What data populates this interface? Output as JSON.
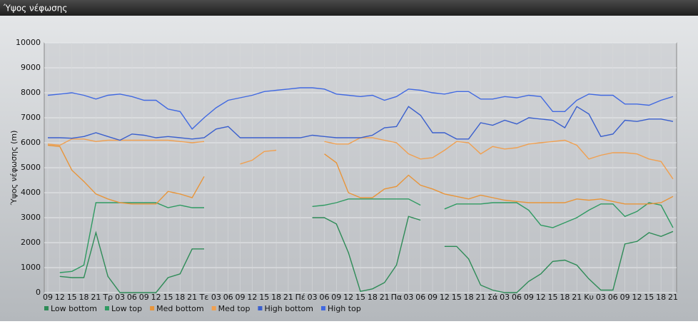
{
  "chart_data": {
    "type": "line",
    "title": "Ύψος νέφωσης",
    "y_label": "Ύψος νέφωσης (m)",
    "categories": [
      "09",
      "12",
      "15",
      "18",
      "21",
      "Τρ",
      "03",
      "06",
      "09",
      "12",
      "15",
      "18",
      "21",
      "Τε",
      "03",
      "06",
      "09",
      "12",
      "15",
      "18",
      "21",
      "Πέ",
      "03",
      "06",
      "09",
      "12",
      "15",
      "18",
      "21",
      "Πα",
      "03",
      "06",
      "09",
      "12",
      "15",
      "18",
      "21",
      "Σά",
      "03",
      "06",
      "09",
      "12",
      "15",
      "18",
      "21",
      "Κυ",
      "03",
      "06",
      "09",
      "12",
      "15",
      "18",
      "21"
    ],
    "ylim": [
      0,
      10000
    ],
    "yticks": [
      0,
      1000,
      2000,
      3000,
      4000,
      5000,
      6000,
      7000,
      8000,
      9000,
      10000
    ],
    "grid": true,
    "series": [
      {
        "name": "Low bottom",
        "color": "#2e8b57",
        "values": [
          null,
          650,
          600,
          600,
          2400,
          650,
          0,
          0,
          0,
          0,
          600,
          750,
          1750,
          1750,
          null,
          null,
          null,
          null,
          null,
          null,
          null,
          null,
          3000,
          3000,
          2750,
          1600,
          50,
          150,
          400,
          1100,
          3050,
          2900,
          null,
          1850,
          1850,
          1350,
          300,
          100,
          0,
          0,
          450,
          750,
          1250,
          1300,
          1100,
          550,
          100,
          100,
          1950,
          2050,
          2400,
          2250,
          2450
        ]
      },
      {
        "name": "Low top",
        "color": "#2f9a62",
        "values": [
          null,
          800,
          850,
          1100,
          3600,
          3600,
          3600,
          3600,
          3600,
          3600,
          3400,
          3500,
          3400,
          3400,
          null,
          null,
          null,
          null,
          null,
          null,
          null,
          null,
          3450,
          3500,
          3600,
          3750,
          3750,
          3750,
          3750,
          3750,
          3750,
          3500,
          null,
          3350,
          3550,
          3550,
          3550,
          3600,
          3600,
          3600,
          3300,
          2700,
          2600,
          2800,
          3000,
          3300,
          3550,
          3550,
          3050,
          3250,
          3600,
          3500,
          2600
        ]
      },
      {
        "name": "Med bottom",
        "color": "#e8953a",
        "values": [
          5900,
          5850,
          4900,
          4450,
          3950,
          3750,
          3600,
          3550,
          3550,
          3550,
          4050,
          3950,
          3800,
          4650,
          null,
          null,
          null,
          null,
          null,
          null,
          null,
          null,
          null,
          5550,
          5200,
          4000,
          3800,
          3800,
          4150,
          4250,
          4700,
          4300,
          4150,
          3950,
          3850,
          3750,
          3900,
          3800,
          3700,
          3650,
          3600,
          3600,
          3600,
          3600,
          3750,
          3700,
          3750,
          3650,
          3550,
          3550,
          3550,
          3600,
          3850
        ]
      },
      {
        "name": "Med top",
        "color": "#f0a050",
        "values": [
          5950,
          5900,
          6150,
          6150,
          6050,
          6100,
          6100,
          6100,
          6100,
          6100,
          6100,
          6050,
          6000,
          6050,
          null,
          null,
          5150,
          5300,
          5650,
          5700,
          null,
          null,
          null,
          6050,
          5950,
          5950,
          6200,
          6200,
          6100,
          6000,
          5550,
          5350,
          5400,
          5700,
          6050,
          6000,
          5550,
          5850,
          5750,
          5800,
          5950,
          6000,
          6050,
          6100,
          5900,
          5350,
          5500,
          5600,
          5600,
          5550,
          5350,
          5250,
          4550
        ]
      },
      {
        "name": "High bottom",
        "color": "#3a5fcd",
        "values": [
          6200,
          6200,
          6180,
          6250,
          6400,
          6250,
          6100,
          6350,
          6300,
          6200,
          6250,
          6200,
          6150,
          6200,
          6550,
          6650,
          6200,
          6200,
          6200,
          6200,
          6200,
          6200,
          6300,
          6250,
          6200,
          6200,
          6200,
          6300,
          6600,
          6650,
          7450,
          7100,
          6400,
          6400,
          6150,
          6150,
          6800,
          6700,
          6900,
          6750,
          7000,
          6950,
          6900,
          6600,
          7450,
          7150,
          6250,
          6350,
          6900,
          6850,
          6950,
          6950,
          6850
        ]
      },
      {
        "name": "High top",
        "color": "#4169e1",
        "values": [
          7900,
          7950,
          8000,
          7900,
          7750,
          7900,
          7950,
          7850,
          7700,
          7700,
          7350,
          7250,
          6550,
          7000,
          7400,
          7700,
          7800,
          7900,
          8050,
          8100,
          8150,
          8200,
          8200,
          8150,
          7950,
          7900,
          7850,
          7900,
          7700,
          7850,
          8150,
          8100,
          8000,
          7950,
          8050,
          8050,
          7750,
          7750,
          7850,
          7800,
          7900,
          7850,
          7250,
          7250,
          7700,
          7950,
          7900,
          7900,
          7550,
          7550,
          7500,
          7700,
          7850
        ]
      }
    ]
  }
}
